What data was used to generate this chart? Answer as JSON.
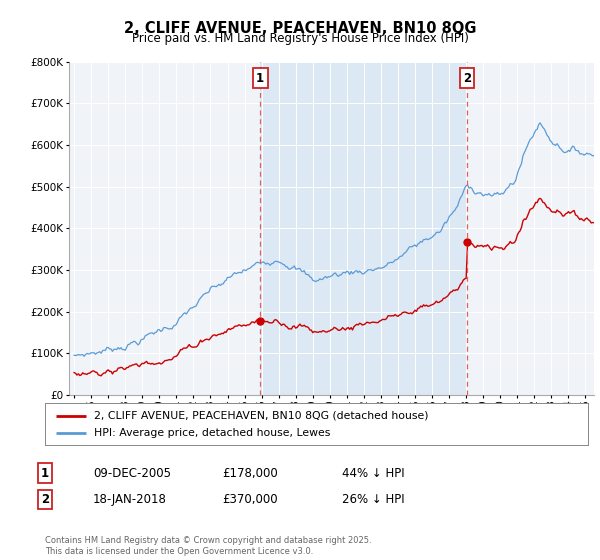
{
  "title": "2, CLIFF AVENUE, PEACEHAVEN, BN10 8QG",
  "subtitle": "Price paid vs. HM Land Registry's House Price Index (HPI)",
  "legend_line1": "2, CLIFF AVENUE, PEACEHAVEN, BN10 8QG (detached house)",
  "legend_line2": "HPI: Average price, detached house, Lewes",
  "transaction1_date": "09-DEC-2005",
  "transaction1_price": "£178,000",
  "transaction1_hpi": "44% ↓ HPI",
  "transaction1_year": 2005.92,
  "transaction1_value": 178000,
  "transaction2_date": "18-JAN-2018",
  "transaction2_price": "£370,000",
  "transaction2_hpi": "26% ↓ HPI",
  "transaction2_year": 2018.05,
  "transaction2_value": 370000,
  "copyright": "Contains HM Land Registry data © Crown copyright and database right 2025.\nThis data is licensed under the Open Government Licence v3.0.",
  "red_color": "#cc0000",
  "blue_color": "#5b9bd5",
  "fill_color": "#dde8f5",
  "background_chart": "#f0f4f8",
  "ylim": [
    0,
    800000
  ],
  "xlim_start": 1994.7,
  "xlim_end": 2025.5
}
